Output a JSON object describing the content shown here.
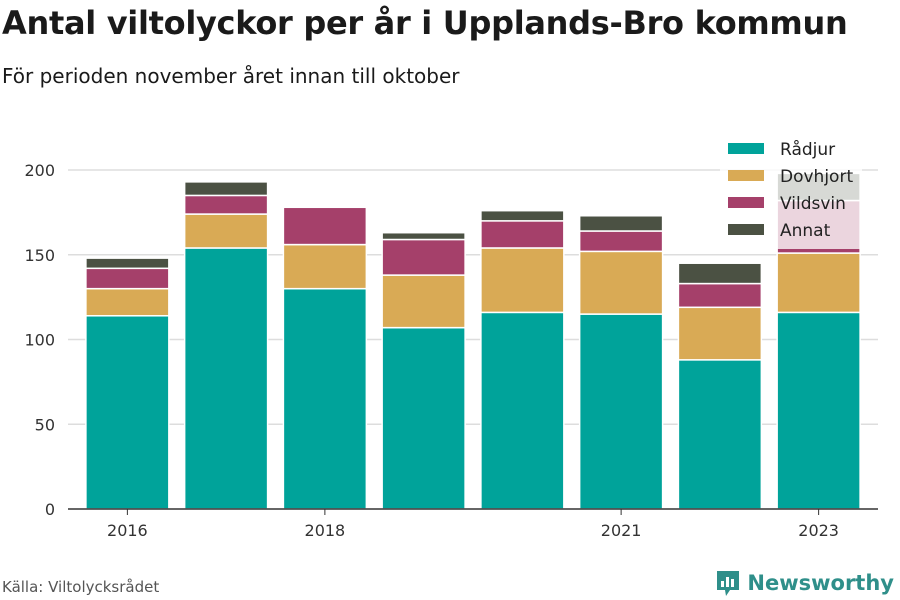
{
  "title": "Antal viltolyckor per år i Upplands-Bro kommun",
  "subtitle": "För perioden november året innan till oktober",
  "source": "Källa: Viltolycksrådet",
  "brand": "Newsworthy",
  "chart_data": {
    "type": "bar",
    "stacked": true,
    "categories": [
      "2016",
      "2017",
      "2018",
      "2019",
      "2020",
      "2021",
      "2022",
      "2023"
    ],
    "x_tick_labels": [
      "2016",
      "",
      "2018",
      "",
      "",
      "2021",
      "",
      "2023"
    ],
    "y_ticks": [
      "0",
      "50",
      "100",
      "150",
      "200"
    ],
    "ylim": [
      0,
      200
    ],
    "grid": true,
    "legend_position": "top-right",
    "series": [
      {
        "name": "Rådjur",
        "color": "#00a39a",
        "values": [
          114,
          154,
          130,
          107,
          116,
          115,
          88,
          116
        ]
      },
      {
        "name": "Dovhjort",
        "color": "#d9aa55",
        "values": [
          16,
          20,
          26,
          31,
          38,
          37,
          31,
          35
        ]
      },
      {
        "name": "Vildsvin",
        "color": "#a5406a",
        "values": [
          12,
          11,
          22,
          21,
          16,
          12,
          14,
          31
        ]
      },
      {
        "name": "Annat",
        "color": "#4b5143",
        "values": [
          6,
          8,
          0,
          4,
          6,
          9,
          12,
          16
        ]
      }
    ]
  }
}
